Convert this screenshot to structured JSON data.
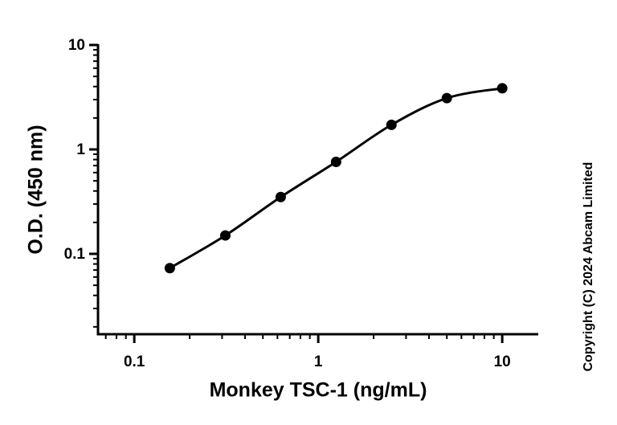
{
  "chart_data": {
    "type": "scatter",
    "x_label": "Monkey TSC-1 (ng/mL)",
    "y_label": "O.D. (450 nm)",
    "annotation": "Copyright (C) 2024 Abcam Limited",
    "x": [
      0.156,
      0.3125,
      0.625,
      1.25,
      2.5,
      5,
      10
    ],
    "values": [
      0.073,
      0.15,
      0.35,
      0.76,
      1.72,
      3.1,
      3.85
    ],
    "color": "#000000",
    "fit_curve": true,
    "xscale": "log",
    "yscale": "log",
    "xlim": [
      0.0635,
      15.7
    ],
    "ylim": [
      0.017,
      10
    ],
    "xticks": [
      0.1,
      1,
      10
    ],
    "yticks": [
      0.1,
      1,
      10
    ],
    "minor_ticks": true
  }
}
